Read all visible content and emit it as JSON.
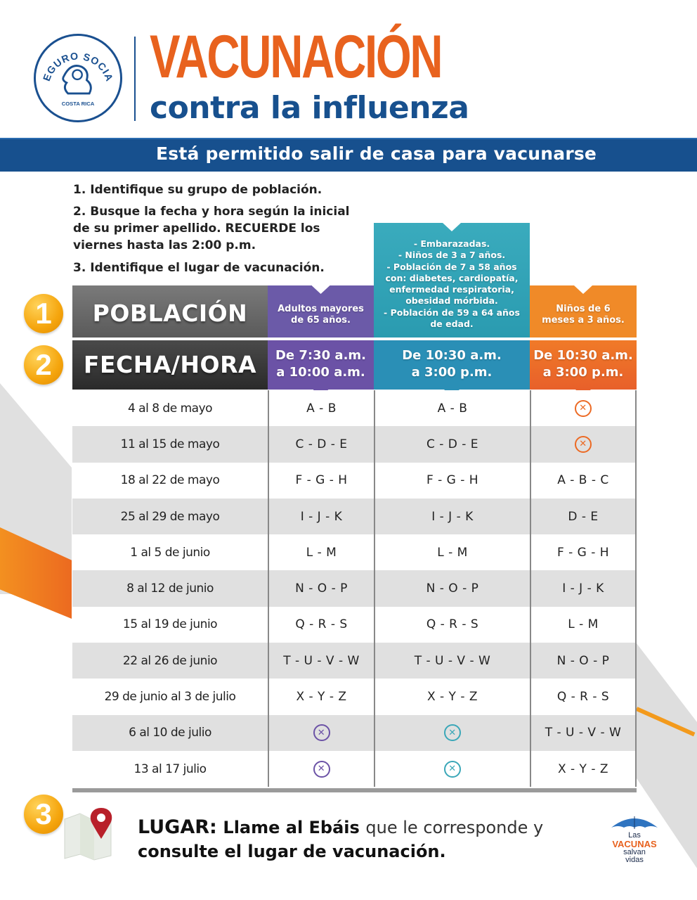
{
  "header": {
    "logo": {
      "top_text": "SEGURO SOCIAL",
      "bottom_text": "COSTA RICA"
    },
    "title": "VACUNACIÓN",
    "subtitle": "contra la influenza",
    "banner": "Está permitido salir de casa para vacunarse"
  },
  "instructions": [
    "1. Identifique su grupo de población.",
    "2. Busque la fecha y hora según la inicial",
    "de su primer apellido. RECUERDE los",
    "viernes hasta las 2:00 p.m.",
    "3. Identifique el lugar de vacunación."
  ],
  "steps": {
    "one": "1",
    "two": "2",
    "three": "3"
  },
  "table": {
    "row_labels": {
      "poblacion": "POBLACIÓN",
      "fecha_hora": "FECHA/HORA"
    },
    "columns": [
      {
        "population": [
          "Adultos mayores",
          "de 65 años."
        ],
        "time": [
          "De 7:30 a.m.",
          "a 10:00 a.m."
        ],
        "color": "#6b52a6"
      },
      {
        "population": [
          "- Embarazadas.",
          "- Niños de 3 a 7 años.",
          "- Población de 7 a 58 años",
          "con: diabetes, cardiopatía,",
          "enfermedad respiratoria,",
          "obesidad mórbida.",
          "- Población de 59 a 64 años",
          "de edad."
        ],
        "time": [
          "De 10:30 a.m.",
          "a 3:00 p.m."
        ],
        "color": "#2a9bb0"
      },
      {
        "population": [
          "Niños de 6",
          "meses a 3 años."
        ],
        "time": [
          "De 10:30 a.m.",
          "a 3:00 p.m."
        ],
        "color": "#ec6a24"
      }
    ],
    "rows": [
      {
        "date": "4 al 8 de mayo",
        "c1": "A - B",
        "c2": "A - B",
        "c3": "x"
      },
      {
        "date": "11 al 15 de mayo",
        "c1": "C - D - E",
        "c2": "C - D - E",
        "c3": "x"
      },
      {
        "date": "18 al 22 de mayo",
        "c1": "F - G - H",
        "c2": "F - G - H",
        "c3": "A - B - C"
      },
      {
        "date": "25 al 29 de mayo",
        "c1": "I - J - K",
        "c2": "I - J - K",
        "c3": "D - E"
      },
      {
        "date": "1 al 5 de junio",
        "c1": "L - M",
        "c2": "L - M",
        "c3": "F - G - H"
      },
      {
        "date": "8 al 12 de junio",
        "c1": "N - O - P",
        "c2": "N - O - P",
        "c3": "I - J - K"
      },
      {
        "date": "15 al 19 de junio",
        "c1": "Q - R - S",
        "c2": "Q - R - S",
        "c3": "L - M"
      },
      {
        "date": "22 al 26 de junio",
        "c1": "T - U - V - W",
        "c2": "T - U - V - W",
        "c3": "N - O - P"
      },
      {
        "date": "29 de junio al 3 de julio",
        "c1": "X - Y - Z",
        "c2": "X - Y - Z",
        "c3": "Q - R - S"
      },
      {
        "date": "6 al 10 de julio",
        "c1": "x",
        "c2": "x",
        "c3": "T - U - V - W"
      },
      {
        "date": "13 al 17 julio",
        "c1": "x",
        "c2": "x",
        "c3": "X - Y - Z"
      }
    ],
    "not_applicable_icon": "circle-x-icon",
    "x_glyph": "✕"
  },
  "footer": {
    "lugar_label": "LUGAR:",
    "part1_bold": "Llame al Ebáis",
    "part1_light": "que le corresponde y",
    "line2": "consulte el lugar de vacunación.",
    "logo": {
      "las": "Las",
      "vacunas": "VACUNAS",
      "salvan": "salvan",
      "vidas": "vidas"
    }
  },
  "colors": {
    "orange_title": "#e8621e",
    "blue_brand": "#17508e",
    "purple": "#6b52a6",
    "teal": "#2a9bb0",
    "orange": "#ec6a24",
    "gold": "#f5a50d"
  }
}
